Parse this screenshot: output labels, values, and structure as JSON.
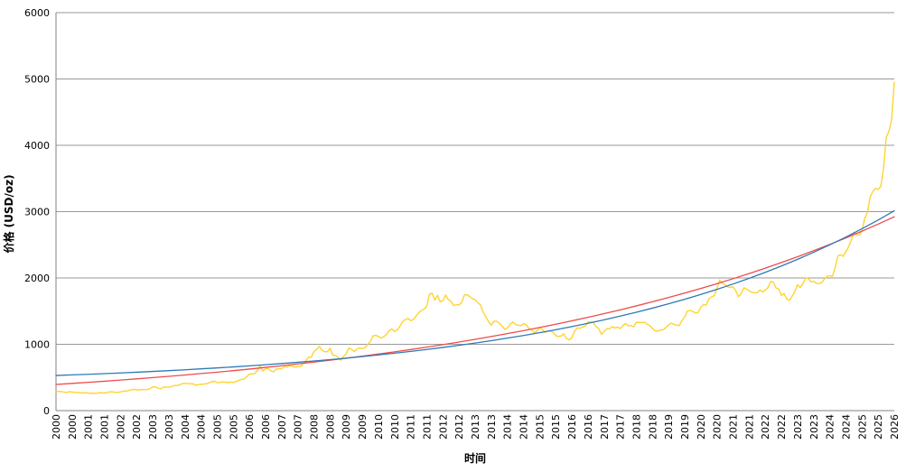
{
  "chart_data": {
    "type": "line",
    "title": "",
    "xlabel": "时间",
    "ylabel": "价格 (USD/oz)",
    "x_start": 2000,
    "x_end": 2026,
    "ylim": [
      0,
      6000
    ],
    "y_tick_step": 1000,
    "grid": "horizontal",
    "legend": "none",
    "y_tick_labels": [
      "0",
      "1000",
      "2000",
      "3000",
      "4000",
      "5000",
      "6000"
    ],
    "x_tick_labels": [
      "2000",
      "2000",
      "2001",
      "2001",
      "2002",
      "2002",
      "2003",
      "2003",
      "2004",
      "2004",
      "2005",
      "2005",
      "2006",
      "2006",
      "2007",
      "2007",
      "2008",
      "2008",
      "2009",
      "2009",
      "2010",
      "2010",
      "2011",
      "2011",
      "2012",
      "2012",
      "2013",
      "2013",
      "2014",
      "2014",
      "2015",
      "2015",
      "2016",
      "2016",
      "2017",
      "2017",
      "2018",
      "2018",
      "2019",
      "2019",
      "2020",
      "2020",
      "2021",
      "2021",
      "2022",
      "2022",
      "2023",
      "2023",
      "2024",
      "2024",
      "2025",
      "2025",
      "2026"
    ],
    "colors": {
      "gold_price": "#FFD42E",
      "trend_red": "#EF4B4B",
      "trend_blue": "#2E79B9",
      "gridline": "#999999",
      "axis": "#808080"
    },
    "series": [
      {
        "name": "gold-price",
        "color_key": "gold_price",
        "x_start": 2000,
        "x_step_years": 0.08333333,
        "stroke_width": 1.4,
        "values": [
          284,
          293,
          286,
          280,
          275,
          285,
          281,
          274,
          273,
          270,
          266,
          272,
          265,
          262,
          263,
          260,
          272,
          270,
          267,
          272,
          283,
          283,
          276,
          276,
          281,
          295,
          294,
          302,
          314,
          321,
          313,
          310,
          319,
          316,
          319,
          333,
          357,
          359,
          340,
          328,
          355,
          356,
          351,
          360,
          379,
          379,
          389,
          407,
          414,
          405,
          407,
          403,
          383,
          392,
          398,
          401,
          405,
          420,
          439,
          442,
          424,
          423,
          434,
          429,
          422,
          431,
          424,
          438,
          456,
          470,
          476,
          510,
          550,
          555,
          557,
          611,
          675,
          596,
          634,
          632,
          598,
          586,
          627,
          630,
          631,
          665,
          655,
          680,
          667,
          655,
          665,
          665,
          713,
          755,
          806,
          804,
          890,
          924,
          968,
          910,
          889,
          889,
          940,
          839,
          829,
          807,
          761,
          816,
          858,
          943,
          924,
          890,
          929,
          946,
          934,
          949,
          997,
          1043,
          1127,
          1135,
          1118,
          1095,
          1113,
          1149,
          1205,
          1233,
          1193,
          1216,
          1271,
          1342,
          1370,
          1390,
          1356,
          1373,
          1424,
          1474,
          1512,
          1529,
          1573,
          1756,
          1771,
          1666,
          1739,
          1640,
          1656,
          1743,
          1674,
          1650,
          1585,
          1597,
          1594,
          1630,
          1744,
          1747,
          1721,
          1688,
          1671,
          1628,
          1593,
          1486,
          1414,
          1343,
          1287,
          1347,
          1348,
          1316,
          1276,
          1225,
          1244,
          1301,
          1336,
          1299,
          1288,
          1279,
          1311,
          1296,
          1238,
          1222,
          1176,
          1199,
          1251,
          1227,
          1178,
          1198,
          1199,
          1181,
          1130,
          1118,
          1125,
          1159,
          1086,
          1068,
          1097,
          1200,
          1246,
          1242,
          1260,
          1276,
          1337,
          1340,
          1327,
          1266,
          1236,
          1151,
          1192,
          1234,
          1231,
          1267,
          1246,
          1260,
          1237,
          1283,
          1314,
          1280,
          1282,
          1264,
          1331,
          1330,
          1325,
          1335,
          1303,
          1282,
          1238,
          1201,
          1198,
          1215,
          1221,
          1250,
          1292,
          1320,
          1301,
          1286,
          1284,
          1359,
          1413,
          1500,
          1511,
          1495,
          1471,
          1479,
          1561,
          1597,
          1592,
          1683,
          1716,
          1732,
          1843,
          1969,
          1922,
          1900,
          1866,
          1856,
          1867,
          1808,
          1718,
          1762,
          1850,
          1835,
          1807,
          1784,
          1777,
          1777,
          1820,
          1787,
          1817,
          1856,
          1948,
          1937,
          1848,
          1834,
          1737,
          1765,
          1681,
          1664,
          1725,
          1797,
          1898,
          1856,
          1913,
          1999,
          1992,
          1943,
          1951,
          1918,
          1916,
          1928,
          1984,
          2026,
          2034,
          2023,
          2160,
          2330,
          2351,
          2326,
          2398,
          2470,
          2568,
          2690,
          2651,
          2644,
          2712,
          2897,
          2983,
          3218,
          3302,
          3350,
          3335,
          3380,
          3645,
          4120,
          4210,
          4380,
          4950
        ]
      },
      {
        "name": "trend-red",
        "color_key": "trend_red",
        "x_start": 2000,
        "x_step_years": 0.5,
        "stroke_width": 1.3,
        "values": [
          395,
          411,
          427,
          443,
          461,
          479,
          498,
          517,
          537,
          559,
          580,
          603,
          627,
          652,
          677,
          704,
          731,
          760,
          790,
          821,
          853,
          886,
          921,
          957,
          995,
          1034,
          1075,
          1117,
          1161,
          1206,
          1253,
          1303,
          1354,
          1407,
          1462,
          1519,
          1579,
          1641,
          1705,
          1772,
          1842,
          1914,
          1989,
          2067,
          2148,
          2233,
          2320,
          2411,
          2506,
          2604,
          2706,
          2812,
          2923
        ]
      },
      {
        "name": "trend-blue",
        "color_key": "trend_blue",
        "x_start": 2000,
        "x_step_years": 0.5,
        "stroke_width": 1.3,
        "values": [
          530,
          539,
          548,
          558,
          568,
          579,
          591,
          603,
          616,
          630,
          644,
          659,
          675,
          692,
          710,
          729,
          748,
          769,
          791,
          815,
          840,
          866,
          893,
          922,
          953,
          985,
          1019,
          1055,
          1093,
          1133,
          1175,
          1220,
          1267,
          1317,
          1369,
          1425,
          1483,
          1545,
          1610,
          1679,
          1752,
          1828,
          1909,
          1995,
          2085,
          2180,
          2281,
          2387,
          2499,
          2617,
          2742,
          2873,
          3012
        ]
      }
    ]
  }
}
